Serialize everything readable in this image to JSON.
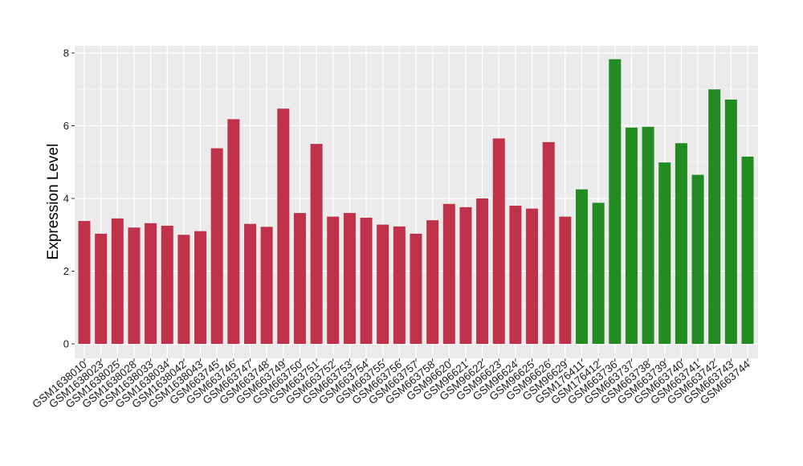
{
  "chart_data": {
    "type": "bar",
    "title": "",
    "xlabel": "",
    "ylabel": "Expression Level",
    "ylim": [
      0,
      8.2
    ],
    "yticks": [
      0,
      2,
      4,
      6,
      8
    ],
    "grid": true,
    "panel_background": "#ebebeb",
    "categories": [
      "GSM1638010",
      "GSM1638023",
      "GSM1638025",
      "GSM1638028",
      "GSM1638033",
      "GSM1638034",
      "GSM1638042",
      "GSM1638043",
      "GSM663745",
      "GSM663746",
      "GSM663747",
      "GSM663748",
      "GSM663749",
      "GSM663750",
      "GSM663751",
      "GSM663752",
      "GSM663753",
      "GSM663754",
      "GSM663755",
      "GSM663756",
      "GSM663757",
      "GSM663758",
      "GSM96620",
      "GSM96621",
      "GSM96622",
      "GSM96623",
      "GSM96624",
      "GSM96625",
      "GSM96626",
      "GSM96629",
      "GSM176411",
      "GSM176412",
      "GSM663736",
      "GSM663737",
      "GSM663738",
      "GSM663739",
      "GSM663740",
      "GSM663741",
      "GSM663742",
      "GSM663743",
      "GSM663744"
    ],
    "values": [
      3.38,
      3.03,
      3.45,
      3.2,
      3.32,
      3.25,
      3.0,
      3.1,
      5.38,
      6.18,
      3.3,
      3.22,
      6.47,
      3.6,
      5.5,
      3.5,
      3.6,
      3.47,
      3.28,
      3.23,
      3.03,
      3.4,
      3.85,
      3.76,
      4.0,
      5.65,
      3.8,
      3.72,
      5.55,
      3.5,
      4.25,
      3.88,
      7.83,
      5.95,
      5.97,
      4.99,
      5.52,
      4.65,
      7.0,
      6.72,
      5.15
    ],
    "colors": [
      "#c0314a",
      "#c0314a",
      "#c0314a",
      "#c0314a",
      "#c0314a",
      "#c0314a",
      "#c0314a",
      "#c0314a",
      "#c0314a",
      "#c0314a",
      "#c0314a",
      "#c0314a",
      "#c0314a",
      "#c0314a",
      "#c0314a",
      "#c0314a",
      "#c0314a",
      "#c0314a",
      "#c0314a",
      "#c0314a",
      "#c0314a",
      "#c0314a",
      "#c0314a",
      "#c0314a",
      "#c0314a",
      "#c0314a",
      "#c0314a",
      "#c0314a",
      "#c0314a",
      "#c0314a",
      "#228b22",
      "#228b22",
      "#228b22",
      "#228b22",
      "#228b22",
      "#228b22",
      "#228b22",
      "#228b22",
      "#228b22",
      "#228b22",
      "#228b22"
    ]
  }
}
